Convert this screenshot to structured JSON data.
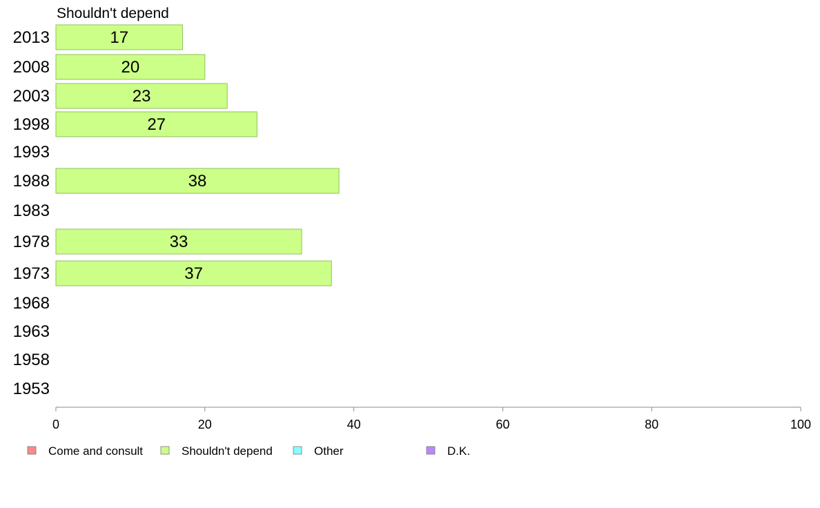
{
  "chart_data": {
    "type": "bar",
    "orientation": "horizontal",
    "panel_title": "Shouldn't depend",
    "categories": [
      "2013",
      "2008",
      "2003",
      "1998",
      "1993",
      "1988",
      "1983",
      "1978",
      "1973",
      "1968",
      "1963",
      "1958",
      "1953"
    ],
    "series": [
      {
        "name": "Shouldn't depend",
        "color": "#ccff88",
        "values": [
          17,
          20,
          23,
          27,
          null,
          38,
          null,
          33,
          37,
          null,
          null,
          null,
          null
        ]
      }
    ],
    "xlim": [
      0,
      100
    ],
    "x_ticks": [
      0,
      20,
      40,
      60,
      80,
      100
    ],
    "grid": false,
    "legend_position": "bottom",
    "legend": [
      {
        "label": "Come and consult",
        "color": "#ff8888"
      },
      {
        "label": "Shouldn't depend",
        "color": "#ccff88"
      },
      {
        "label": "Other",
        "color": "#88ffff"
      },
      {
        "label": "D.K.",
        "color": "#bb88ff"
      }
    ]
  }
}
